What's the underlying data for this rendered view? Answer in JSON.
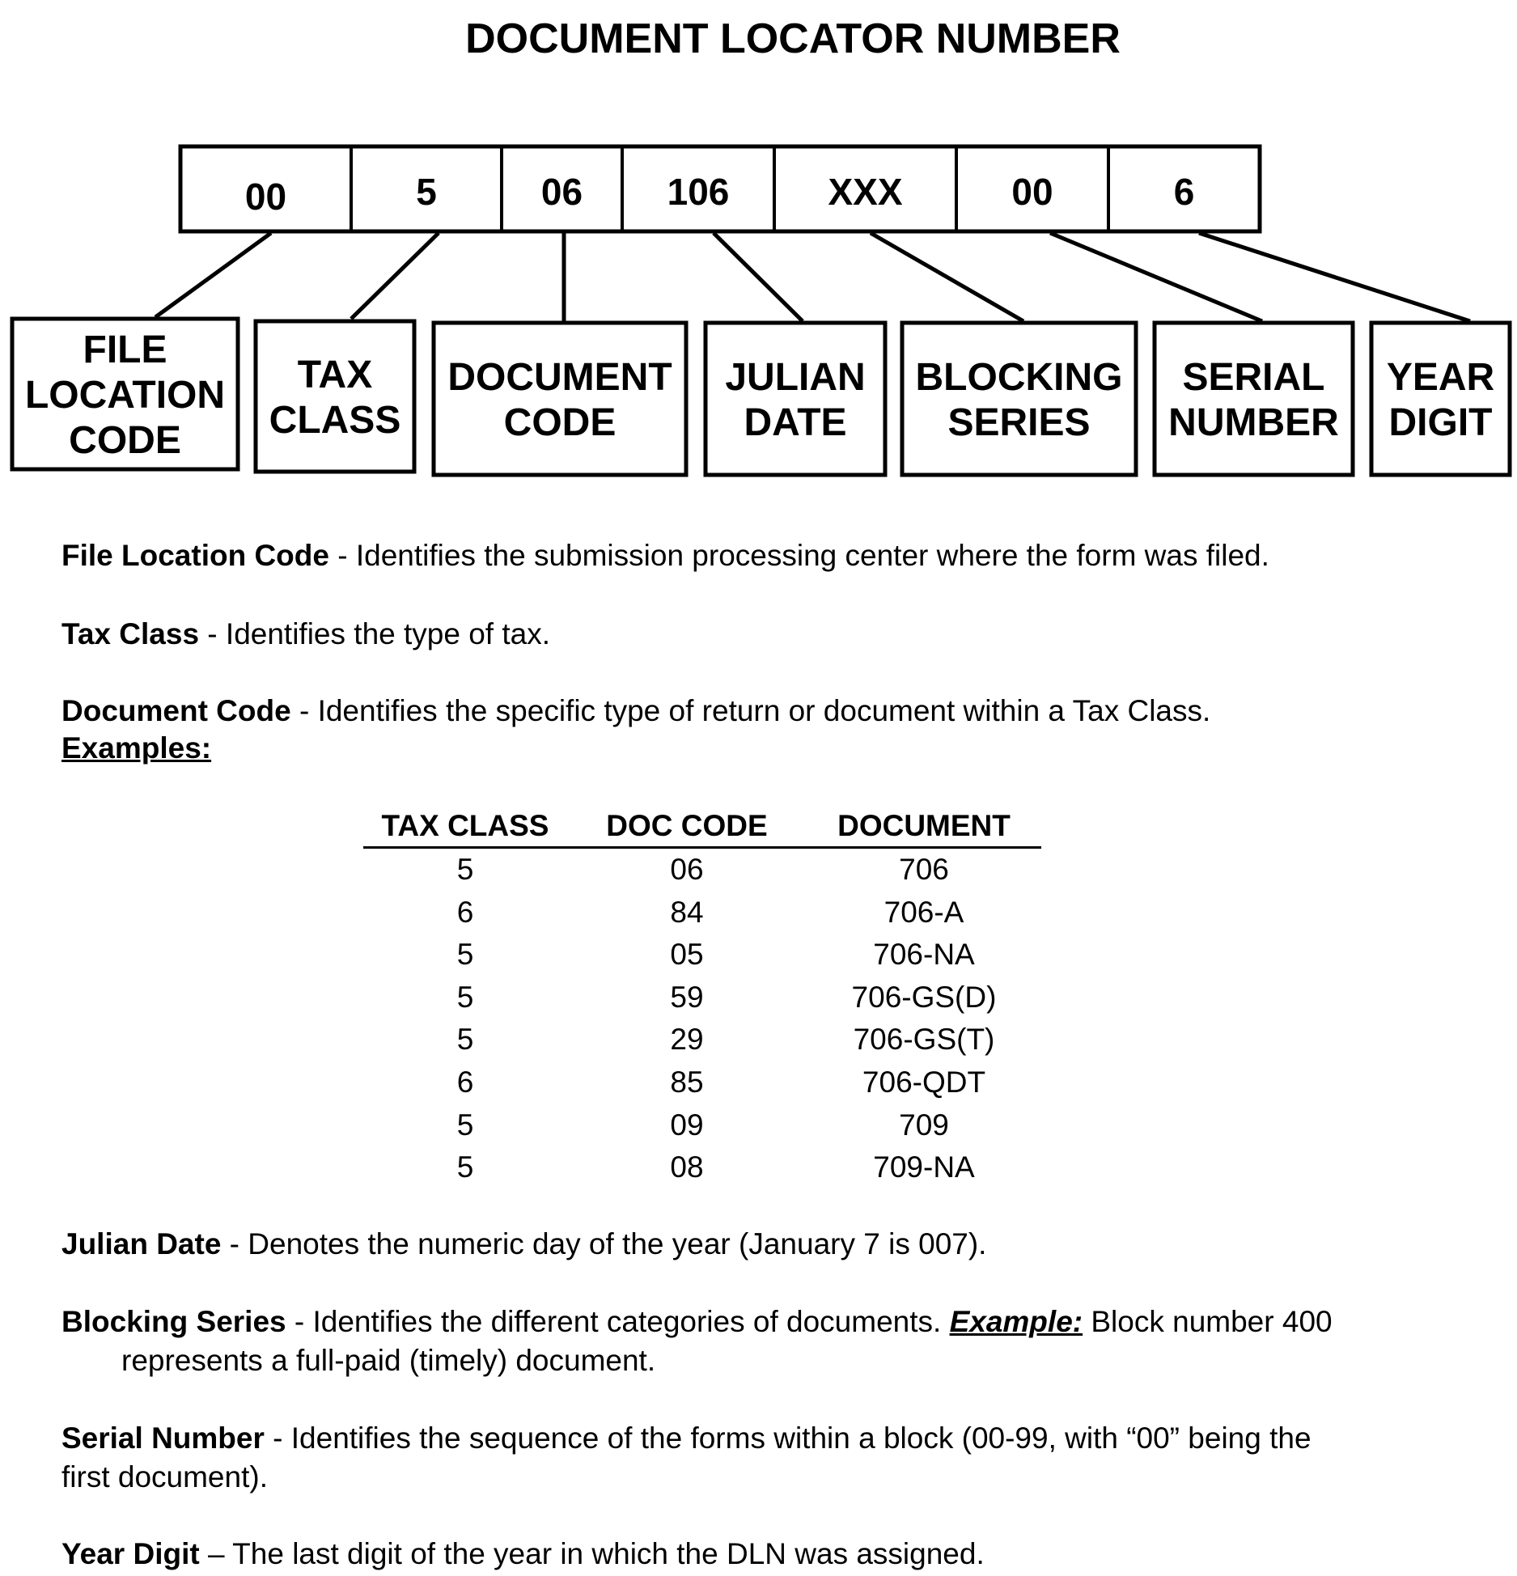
{
  "title": "DOCUMENT LOCATOR NUMBER",
  "dln_segments": [
    "00",
    "5",
    "06",
    "106",
    "XXX",
    "00",
    "6"
  ],
  "segment_labels": [
    [
      "FILE",
      "LOCATION",
      "CODE"
    ],
    [
      "TAX",
      "CLASS"
    ],
    [
      "DOCUMENT",
      "CODE"
    ],
    [
      "JULIAN",
      "DATE"
    ],
    [
      "BLOCKING",
      "SERIES"
    ],
    [
      "SERIAL",
      "NUMBER"
    ],
    [
      "YEAR",
      "DIGIT"
    ]
  ],
  "definitions": {
    "file_location": {
      "term": "File Location Code",
      "sep": " - ",
      "text": "Identifies the submission processing center where the form was filed."
    },
    "tax_class": {
      "term": "Tax Class",
      "sep": " - ",
      "text": "Identifies the type of tax."
    },
    "document_code": {
      "term": "Document Code",
      "sep": " - ",
      "text": "Identifies the specific type of return or document within a Tax Class."
    },
    "examples_heading": "Examples:",
    "julian_date": {
      "term": "Julian Date",
      "sep": " - ",
      "text": "Denotes the numeric day of the year (January 7 is 007)."
    },
    "blocking_series": {
      "term": "Blocking Series",
      "sep": " - ",
      "text": "Identifies the different categories of documents. ",
      "example_label": "Example:",
      "example_text": " Block number 400",
      "continuation": "represents a full-paid (timely) document."
    },
    "serial_number": {
      "term": "Serial Number",
      "sep": " - ",
      "text": "Identifies the sequence of the forms within a block (00-99, with “00” being the",
      "continuation": "first document)."
    },
    "year_digit": {
      "term": "Year Digit",
      "sep": " – ",
      "text": "The last digit of the year in which the DLN was assigned."
    }
  },
  "examples_table": {
    "headers": [
      "TAX CLASS",
      "DOC CODE",
      "DOCUMENT"
    ],
    "rows": [
      [
        "5",
        "06",
        "706"
      ],
      [
        "6",
        "84",
        "706-A"
      ],
      [
        "5",
        "05",
        "706-NA"
      ],
      [
        "5",
        "59",
        "706-GS(D)"
      ],
      [
        "5",
        "29",
        "706-GS(T)"
      ],
      [
        "6",
        "85",
        "706-QDT"
      ],
      [
        "5",
        "09",
        "709"
      ],
      [
        "5",
        "08",
        "709-NA"
      ]
    ]
  }
}
